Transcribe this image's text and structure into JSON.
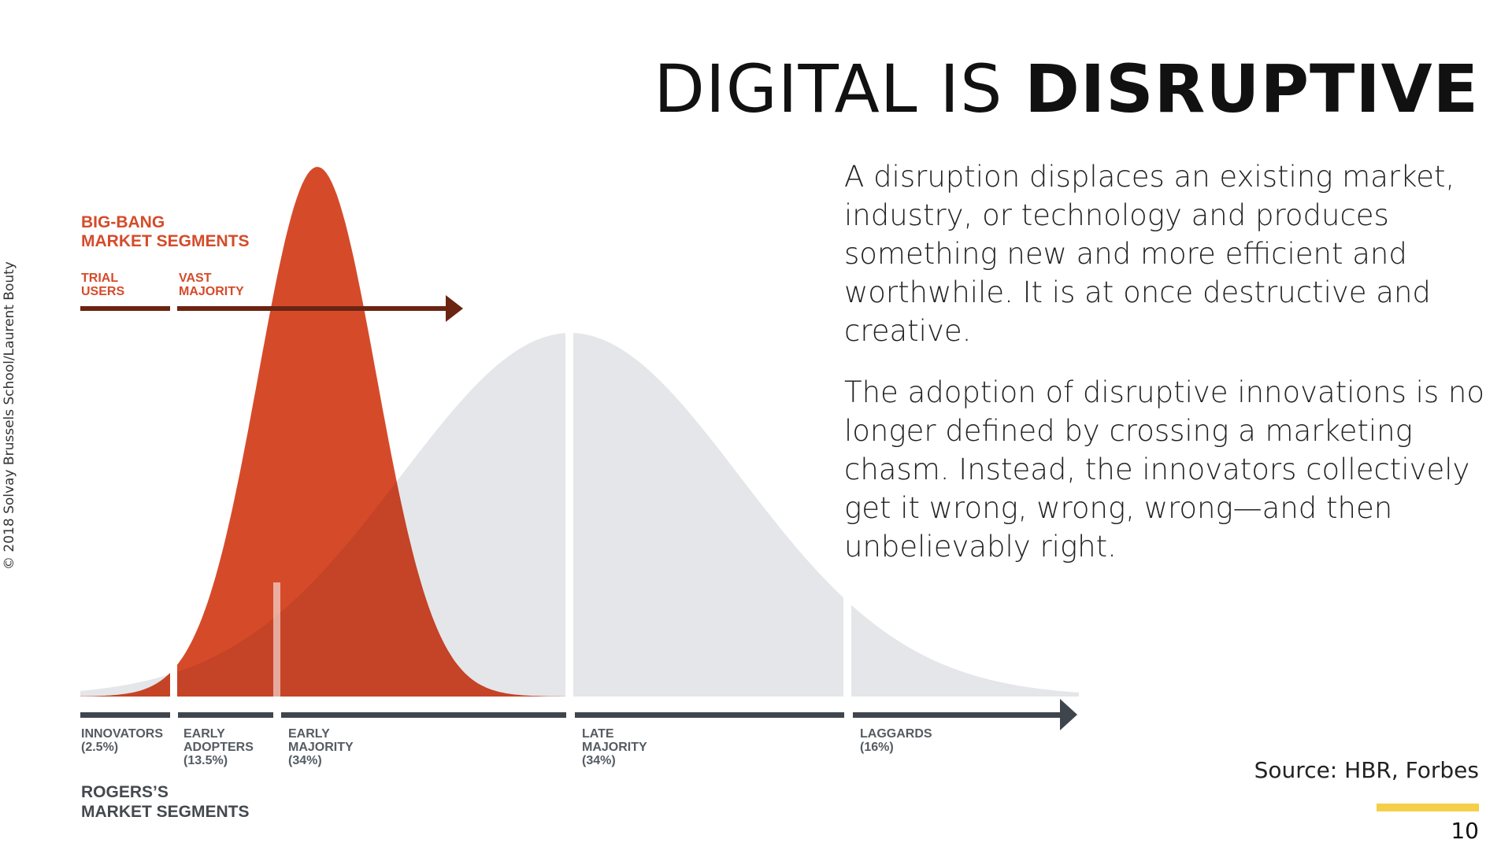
{
  "slide": {
    "title_light": "DIGITAL IS",
    "title_bold": "DISRUPTIVE",
    "copyright": "© 2018 Solvay Brussels School/Laurent Bouty",
    "paragraphs": [
      "A disruption displaces an existing market, industry, or technology and produces something new and more efficient and worthwhile. It is at once destructive and creative.",
      "The adoption of disruptive innovations is no longer defined by crossing a marketing chasm. Instead, the innovators collectively get it wrong, wrong, wrong—and then unbelievably right."
    ],
    "source": "Source: HBR, Forbes",
    "page_number": "10",
    "accent_color": "#f5cf47"
  },
  "diagram": {
    "big_bang": {
      "heading_line1": "BIG-BANG",
      "heading_line2": "MARKET SEGMENTS",
      "segments": [
        {
          "line1": "TRIAL",
          "line2": "USERS"
        },
        {
          "line1": "VAST",
          "line2": "MAJORITY"
        }
      ],
      "color": "#d54b2a"
    },
    "rogers": {
      "heading_line1": "ROGERS’S",
      "heading_line2": "MARKET SEGMENTS",
      "segments": [
        {
          "line1": "INNOVATORS",
          "line2": "(2.5%)",
          "line3": ""
        },
        {
          "line1": "EARLY",
          "line2": "ADOPTERS",
          "line3": "(13.5%)"
        },
        {
          "line1": "EARLY",
          "line2": "MAJORITY",
          "line3": "(34%)"
        },
        {
          "line1": "LATE",
          "line2": "MAJORITY",
          "line3": "(34%)"
        },
        {
          "line1": "LAGGARDS",
          "line2": "(16%)",
          "line3": ""
        }
      ],
      "color": "#e4e6e9"
    }
  }
}
